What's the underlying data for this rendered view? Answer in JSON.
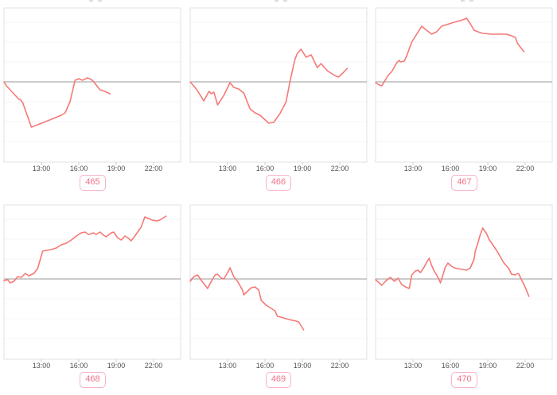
{
  "page": {
    "background": "#ffffff"
  },
  "colors": {
    "line": "#f57977",
    "baseline": "#999999",
    "plot_border": "#e2e2e2",
    "gridline": "#f5f5f5",
    "tick_mark": "#cccccc",
    "tick_text": "#555555",
    "badge_text": "#ef7189",
    "badge_border": "#f8b3c3"
  },
  "axis": {
    "ticks": [
      "13:00",
      "16:00",
      "19:00",
      "22:00"
    ],
    "tick_hours": [
      13,
      16,
      19,
      22
    ],
    "x_range_hours": [
      10.0,
      24.2
    ]
  },
  "chart_data": [
    {
      "type": "line",
      "label": "465",
      "x_unit": "time of day (hours)",
      "y_unit": "relative value (baseline = 0)",
      "points": [
        [
          10.0,
          0
        ],
        [
          10.2,
          -5
        ],
        [
          11.2,
          -22
        ],
        [
          11.3,
          -22
        ],
        [
          11.5,
          -26
        ],
        [
          12.2,
          -57
        ],
        [
          13.5,
          -49
        ],
        [
          14.6,
          -42
        ],
        [
          14.9,
          -39
        ],
        [
          15.3,
          -25
        ],
        [
          15.7,
          2
        ],
        [
          16.0,
          4
        ],
        [
          16.3,
          2
        ],
        [
          16.7,
          5
        ],
        [
          17.0,
          3
        ],
        [
          17.2,
          0
        ],
        [
          17.7,
          -10
        ],
        [
          18.1,
          -12
        ],
        [
          18.5,
          -15
        ]
      ]
    },
    {
      "type": "line",
      "label": "466",
      "x_unit": "time of day (hours)",
      "y_unit": "relative value (baseline = 0)",
      "points": [
        [
          10.0,
          0
        ],
        [
          10.5,
          -9
        ],
        [
          11.1,
          -24
        ],
        [
          11.5,
          -12
        ],
        [
          11.7,
          -15
        ],
        [
          11.9,
          -13
        ],
        [
          12.2,
          -29
        ],
        [
          12.7,
          -17
        ],
        [
          13.2,
          -1
        ],
        [
          13.5,
          -7
        ],
        [
          13.9,
          -9
        ],
        [
          14.3,
          -14
        ],
        [
          14.8,
          -34
        ],
        [
          15.2,
          -39
        ],
        [
          15.6,
          -42
        ],
        [
          16.1,
          -49
        ],
        [
          16.3,
          -52
        ],
        [
          16.7,
          -51
        ],
        [
          17.2,
          -40
        ],
        [
          17.7,
          -25
        ],
        [
          18.0,
          0
        ],
        [
          18.4,
          28
        ],
        [
          18.6,
          36
        ],
        [
          18.9,
          41
        ],
        [
          19.3,
          31
        ],
        [
          19.7,
          34
        ],
        [
          20.2,
          18
        ],
        [
          20.5,
          23
        ],
        [
          21.0,
          14
        ],
        [
          21.6,
          8
        ],
        [
          21.9,
          6
        ],
        [
          22.3,
          12
        ],
        [
          22.6,
          17
        ]
      ]
    },
    {
      "type": "line",
      "label": "467",
      "x_unit": "time of day (hours)",
      "y_unit": "relative value (baseline = 0)",
      "points": [
        [
          10.0,
          -1
        ],
        [
          10.3,
          -4
        ],
        [
          10.5,
          -5
        ],
        [
          11.0,
          8
        ],
        [
          11.3,
          13
        ],
        [
          11.7,
          24
        ],
        [
          11.9,
          27
        ],
        [
          12.0,
          25
        ],
        [
          12.3,
          26
        ],
        [
          12.5,
          33
        ],
        [
          12.9,
          50
        ],
        [
          13.3,
          60
        ],
        [
          13.7,
          70
        ],
        [
          14.0,
          66
        ],
        [
          14.5,
          60
        ],
        [
          14.9,
          63
        ],
        [
          15.3,
          70
        ],
        [
          15.7,
          72
        ],
        [
          16.3,
          75
        ],
        [
          16.8,
          77
        ],
        [
          17.3,
          80
        ],
        [
          17.6,
          73
        ],
        [
          17.9,
          65
        ],
        [
          18.2,
          63
        ],
        [
          18.6,
          61
        ],
        [
          19.3,
          60
        ],
        [
          19.9,
          60
        ],
        [
          20.5,
          60
        ],
        [
          20.9,
          58
        ],
        [
          21.2,
          56
        ],
        [
          21.4,
          48
        ],
        [
          21.7,
          42
        ],
        [
          21.9,
          38
        ]
      ]
    },
    {
      "type": "line",
      "label": "468",
      "x_unit": "time of day (hours)",
      "y_unit": "relative value (baseline = 0)",
      "points": [
        [
          10.0,
          -2
        ],
        [
          10.3,
          -1
        ],
        [
          10.5,
          -5
        ],
        [
          10.8,
          -3
        ],
        [
          11.1,
          3
        ],
        [
          11.4,
          2
        ],
        [
          11.7,
          7
        ],
        [
          12.0,
          4
        ],
        [
          12.4,
          7
        ],
        [
          12.7,
          13
        ],
        [
          13.1,
          35
        ],
        [
          13.4,
          36
        ],
        [
          13.8,
          37
        ],
        [
          14.2,
          39
        ],
        [
          14.6,
          43
        ],
        [
          15.0,
          45
        ],
        [
          15.4,
          49
        ],
        [
          15.8,
          54
        ],
        [
          16.2,
          58
        ],
        [
          16.5,
          59
        ],
        [
          16.8,
          56
        ],
        [
          17.2,
          58
        ],
        [
          17.4,
          56
        ],
        [
          17.7,
          59
        ],
        [
          18.0,
          55
        ],
        [
          18.2,
          53
        ],
        [
          18.6,
          58
        ],
        [
          18.8,
          59
        ],
        [
          19.1,
          52
        ],
        [
          19.4,
          49
        ],
        [
          19.7,
          54
        ],
        [
          20.0,
          51
        ],
        [
          20.2,
          48
        ],
        [
          20.5,
          54
        ],
        [
          20.8,
          61
        ],
        [
          21.0,
          65
        ],
        [
          21.3,
          78
        ],
        [
          21.6,
          76
        ],
        [
          21.9,
          74
        ],
        [
          22.3,
          73
        ],
        [
          22.6,
          75
        ],
        [
          23.0,
          79
        ]
      ]
    },
    {
      "type": "line",
      "label": "469",
      "x_unit": "time of day (hours)",
      "y_unit": "relative value (baseline = 0)",
      "points": [
        [
          10.0,
          -3
        ],
        [
          10.3,
          3
        ],
        [
          10.6,
          5
        ],
        [
          11.0,
          -4
        ],
        [
          11.4,
          -12
        ],
        [
          11.7,
          -3
        ],
        [
          12.0,
          5
        ],
        [
          12.2,
          6
        ],
        [
          12.5,
          1
        ],
        [
          12.7,
          0
        ],
        [
          13.0,
          8
        ],
        [
          13.2,
          14
        ],
        [
          13.5,
          3
        ],
        [
          13.8,
          -3
        ],
        [
          14.2,
          -14
        ],
        [
          14.3,
          -20
        ],
        [
          14.7,
          -14
        ],
        [
          14.9,
          -11
        ],
        [
          15.2,
          -10
        ],
        [
          15.5,
          -14
        ],
        [
          15.7,
          -27
        ],
        [
          16.1,
          -33
        ],
        [
          16.5,
          -37
        ],
        [
          16.8,
          -40
        ],
        [
          17.0,
          -47
        ],
        [
          17.5,
          -49
        ],
        [
          17.9,
          -51
        ],
        [
          18.2,
          -52
        ],
        [
          18.5,
          -53
        ],
        [
          18.7,
          -54
        ],
        [
          18.9,
          -59
        ],
        [
          19.1,
          -64
        ]
      ]
    },
    {
      "type": "line",
      "label": "470",
      "x_unit": "time of day (hours)",
      "y_unit": "relative value (baseline = 0)",
      "points": [
        [
          10.0,
          -1
        ],
        [
          10.3,
          -5
        ],
        [
          10.5,
          -8
        ],
        [
          10.8,
          -3
        ],
        [
          11.0,
          0
        ],
        [
          11.2,
          2
        ],
        [
          11.5,
          -3
        ],
        [
          11.8,
          1
        ],
        [
          12.1,
          -7
        ],
        [
          12.4,
          -10
        ],
        [
          12.7,
          -12
        ],
        [
          12.9,
          5
        ],
        [
          13.2,
          10
        ],
        [
          13.4,
          11
        ],
        [
          13.6,
          8
        ],
        [
          13.9,
          15
        ],
        [
          14.1,
          21
        ],
        [
          14.3,
          26
        ],
        [
          14.5,
          17
        ],
        [
          14.7,
          10
        ],
        [
          14.9,
          5
        ],
        [
          15.1,
          -1
        ],
        [
          15.2,
          -5
        ],
        [
          15.4,
          5
        ],
        [
          15.6,
          15
        ],
        [
          15.8,
          20
        ],
        [
          16.1,
          16
        ],
        [
          16.3,
          14
        ],
        [
          16.6,
          13
        ],
        [
          17.0,
          12
        ],
        [
          17.3,
          11
        ],
        [
          17.6,
          14
        ],
        [
          17.9,
          25
        ],
        [
          18.0,
          35
        ],
        [
          18.2,
          45
        ],
        [
          18.4,
          56
        ],
        [
          18.6,
          64
        ],
        [
          18.9,
          57
        ],
        [
          19.1,
          50
        ],
        [
          19.4,
          43
        ],
        [
          19.7,
          36
        ],
        [
          20.0,
          28
        ],
        [
          20.3,
          20
        ],
        [
          20.7,
          13
        ],
        [
          20.9,
          6
        ],
        [
          21.2,
          5
        ],
        [
          21.4,
          7
        ],
        [
          21.5,
          6
        ],
        [
          21.7,
          -1
        ],
        [
          21.9,
          -7
        ],
        [
          22.1,
          -14
        ],
        [
          22.3,
          -22
        ]
      ]
    }
  ]
}
